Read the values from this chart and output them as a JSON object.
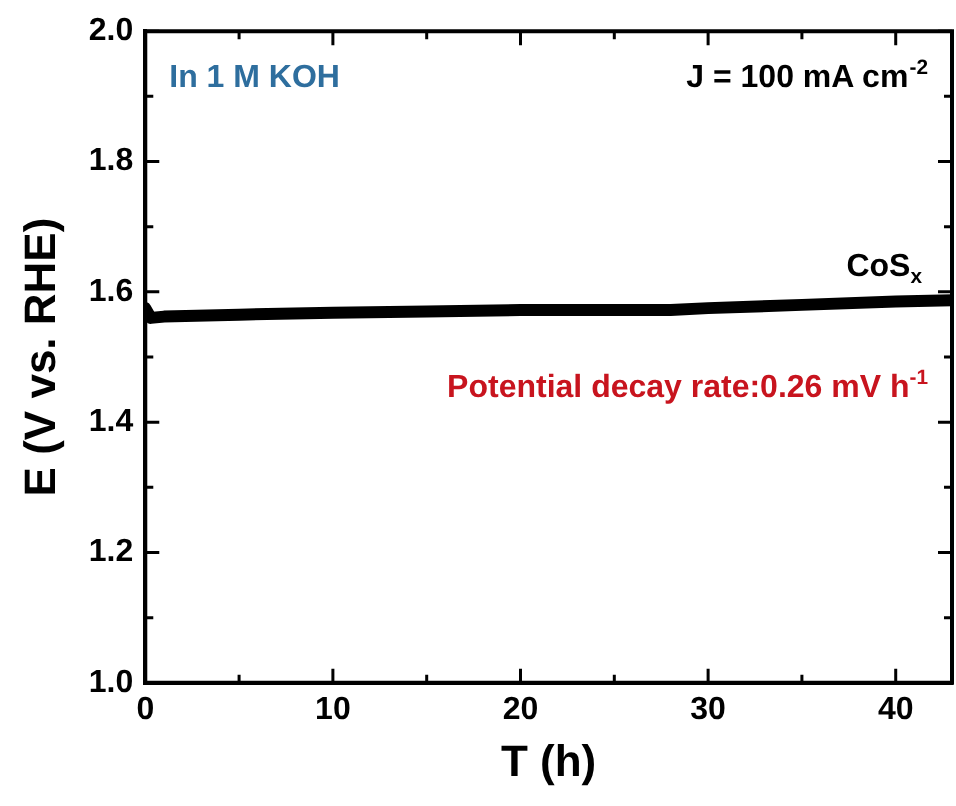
{
  "chart_data": {
    "type": "line",
    "xlabel": "T (h)",
    "ylabel": "E (V vs. RHE)",
    "x": [
      0,
      0.3,
      1,
      5,
      10,
      15,
      20,
      25,
      28,
      30,
      35,
      40,
      43
    ],
    "series": [
      {
        "name": "CoS$_{x}$",
        "color": "#000000",
        "values": [
          1.575,
          1.56,
          1.562,
          1.565,
          1.568,
          1.57,
          1.572,
          1.572,
          1.572,
          1.575,
          1.58,
          1.585,
          1.587
        ]
      }
    ],
    "xlim": [
      0,
      43
    ],
    "xticks": [
      0,
      10,
      20,
      30,
      40
    ],
    "ylim": [
      1.0,
      2.0
    ],
    "yticks": [
      {
        "value": 1,
        "label": "1.0"
      },
      1.2,
      1.4,
      1.6,
      1.8,
      {
        "value": 2,
        "label": "2.0"
      }
    ],
    "annotations": [
      "In 1 M KOH",
      "J = 100 mA cm$^{-2}$",
      "Potential decay rate:0.26 mV h$^{-1}$"
    ],
    "grid": false,
    "legend": "right",
    "marker": "none",
    "line_style": "solid"
  }
}
